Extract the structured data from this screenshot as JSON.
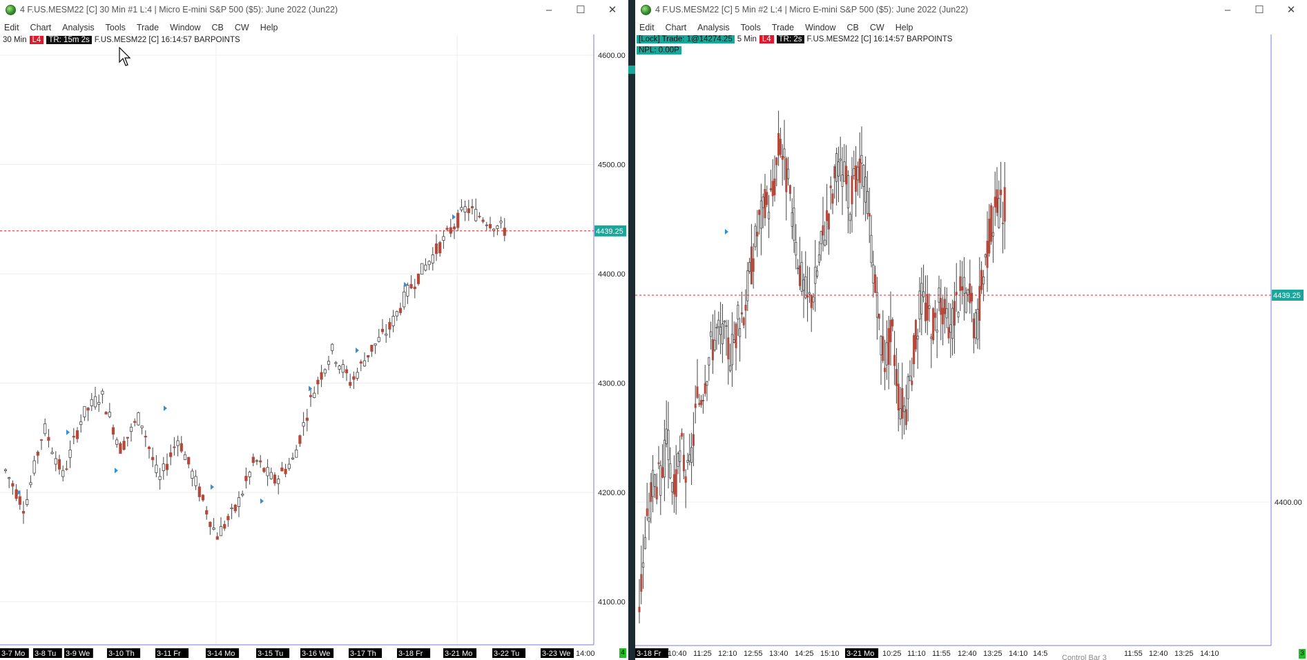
{
  "colors": {
    "up_candle": "#ffffff",
    "down_candle": "#b5483a",
    "price_line": "#e02020",
    "price_tag": "#1aa79b",
    "marker": "#2f8fe0",
    "axis_border": "#7a7adc",
    "grid": "#eeeeee"
  },
  "chart1": {
    "title": "4 F.US.MESM22 [C]  30 Min   #1 L:4 | Micro E-mini S&P 500 ($5): June 2022 (Jun22)",
    "menu": [
      "Edit",
      "Chart",
      "Analysis",
      "Tools",
      "Trade",
      "Window",
      "CB",
      "CW",
      "Help"
    ],
    "info": {
      "interval": "30 Min",
      "level": "L4",
      "timer": "TR: 15m 2s",
      "symbol": "F.US.MESM22 [C] 16:14:57 BARPOINTS"
    },
    "price_labels": [
      "4600.00",
      "4500.00",
      "4400.00",
      "4300.00",
      "4200.00",
      "4100.00"
    ],
    "current_price": "4439.25",
    "date_labels": [
      "3-7 Mo",
      "3-8 Tu",
      "3-9 We",
      "3-10 Th",
      "3-11 Fr",
      "3-14 Mo",
      "3-15 Tu",
      "3-16 We",
      "3-17 Th",
      "3-18 Fr",
      "3-21 Mo",
      "3-22 Tu",
      "3-23 We",
      "14:00"
    ],
    "corner_badge": "4"
  },
  "chart2": {
    "title": "4 F.US.MESM22 [C]  5 Min   #2 L:4 | Micro E-mini S&P 500 ($5): June 2022 (Jun22)",
    "menu": [
      "Edit",
      "Chart",
      "Analysis",
      "Tools",
      "Trade",
      "Window",
      "CB",
      "CW",
      "Help"
    ],
    "info": {
      "lock_trade": "[Lock] Trade: 1@14274.25",
      "interval": "5 Min",
      "level": "L4",
      "timer": "TR: 2s",
      "symbol": "F.US.MESM22 [C] 16:14:57 BARPOINTS",
      "npl": "NPL: 0.00P"
    },
    "price_labels": [
      "4400.00"
    ],
    "current_price": "4439.25",
    "time_labels": [
      "3-18 Fr",
      "10:40",
      "11:25",
      "12:10",
      "12:55",
      "13:40",
      "14:25",
      "15:10",
      "3-21 Mo",
      "10:25",
      "11:10",
      "11:55",
      "12:40",
      "13:25",
      "14:10",
      "14:5",
      "Control Bar 3",
      "11:55",
      "12:40",
      "13:25",
      "14:10"
    ],
    "corner_badge": "3"
  },
  "icons": [
    "globe-icon",
    "minimize-icon",
    "maximize-icon",
    "close-icon",
    "mouse-cursor-icon"
  ]
}
